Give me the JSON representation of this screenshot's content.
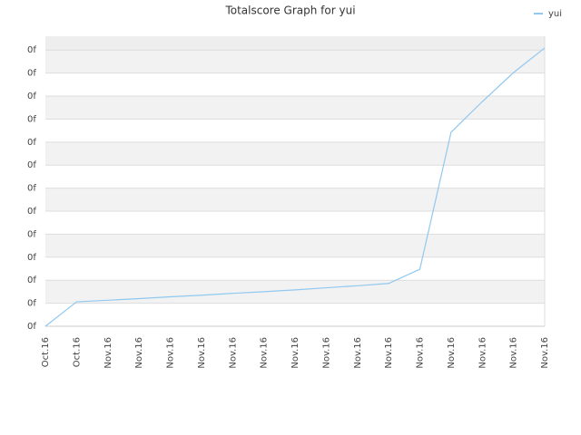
{
  "chart_data": {
    "type": "line",
    "title": "Totalscore Graph for yui",
    "categories": [
      "Oct.16",
      "Oct.16",
      "Nov.16",
      "Nov.16",
      "Nov.16",
      "Nov.16",
      "Nov.16",
      "Nov.16",
      "Nov.16",
      "Nov.16",
      "Nov.16",
      "Nov.16",
      "Nov.16",
      "Nov.16",
      "Nov.16",
      "Nov.16",
      "Nov.16"
    ],
    "series": [
      {
        "name": "yui",
        "color": "#90c8f0",
        "values": [
          0,
          1.06,
          1.13,
          1.2,
          1.28,
          1.35,
          1.43,
          1.5,
          1.58,
          1.67,
          1.76,
          1.86,
          2.48,
          8.43,
          9.76,
          11.02,
          12.09
        ]
      }
    ],
    "ylim": [
      0,
      12.6
    ],
    "yticks": [
      {
        "value": 0,
        "label": "0f"
      },
      {
        "value": 1,
        "label": "0f"
      },
      {
        "value": 2,
        "label": "0f"
      },
      {
        "value": 3,
        "label": "0f"
      },
      {
        "value": 4,
        "label": "0f"
      },
      {
        "value": 5,
        "label": "0f"
      },
      {
        "value": 6,
        "label": "0f"
      },
      {
        "value": 7,
        "label": "0f"
      },
      {
        "value": 8,
        "label": "0f"
      },
      {
        "value": 9,
        "label": "0f"
      },
      {
        "value": 10,
        "label": "0f"
      },
      {
        "value": 11,
        "label": "0f"
      },
      {
        "value": 12,
        "label": "0f"
      }
    ],
    "grid": true,
    "legend": "top-right"
  }
}
